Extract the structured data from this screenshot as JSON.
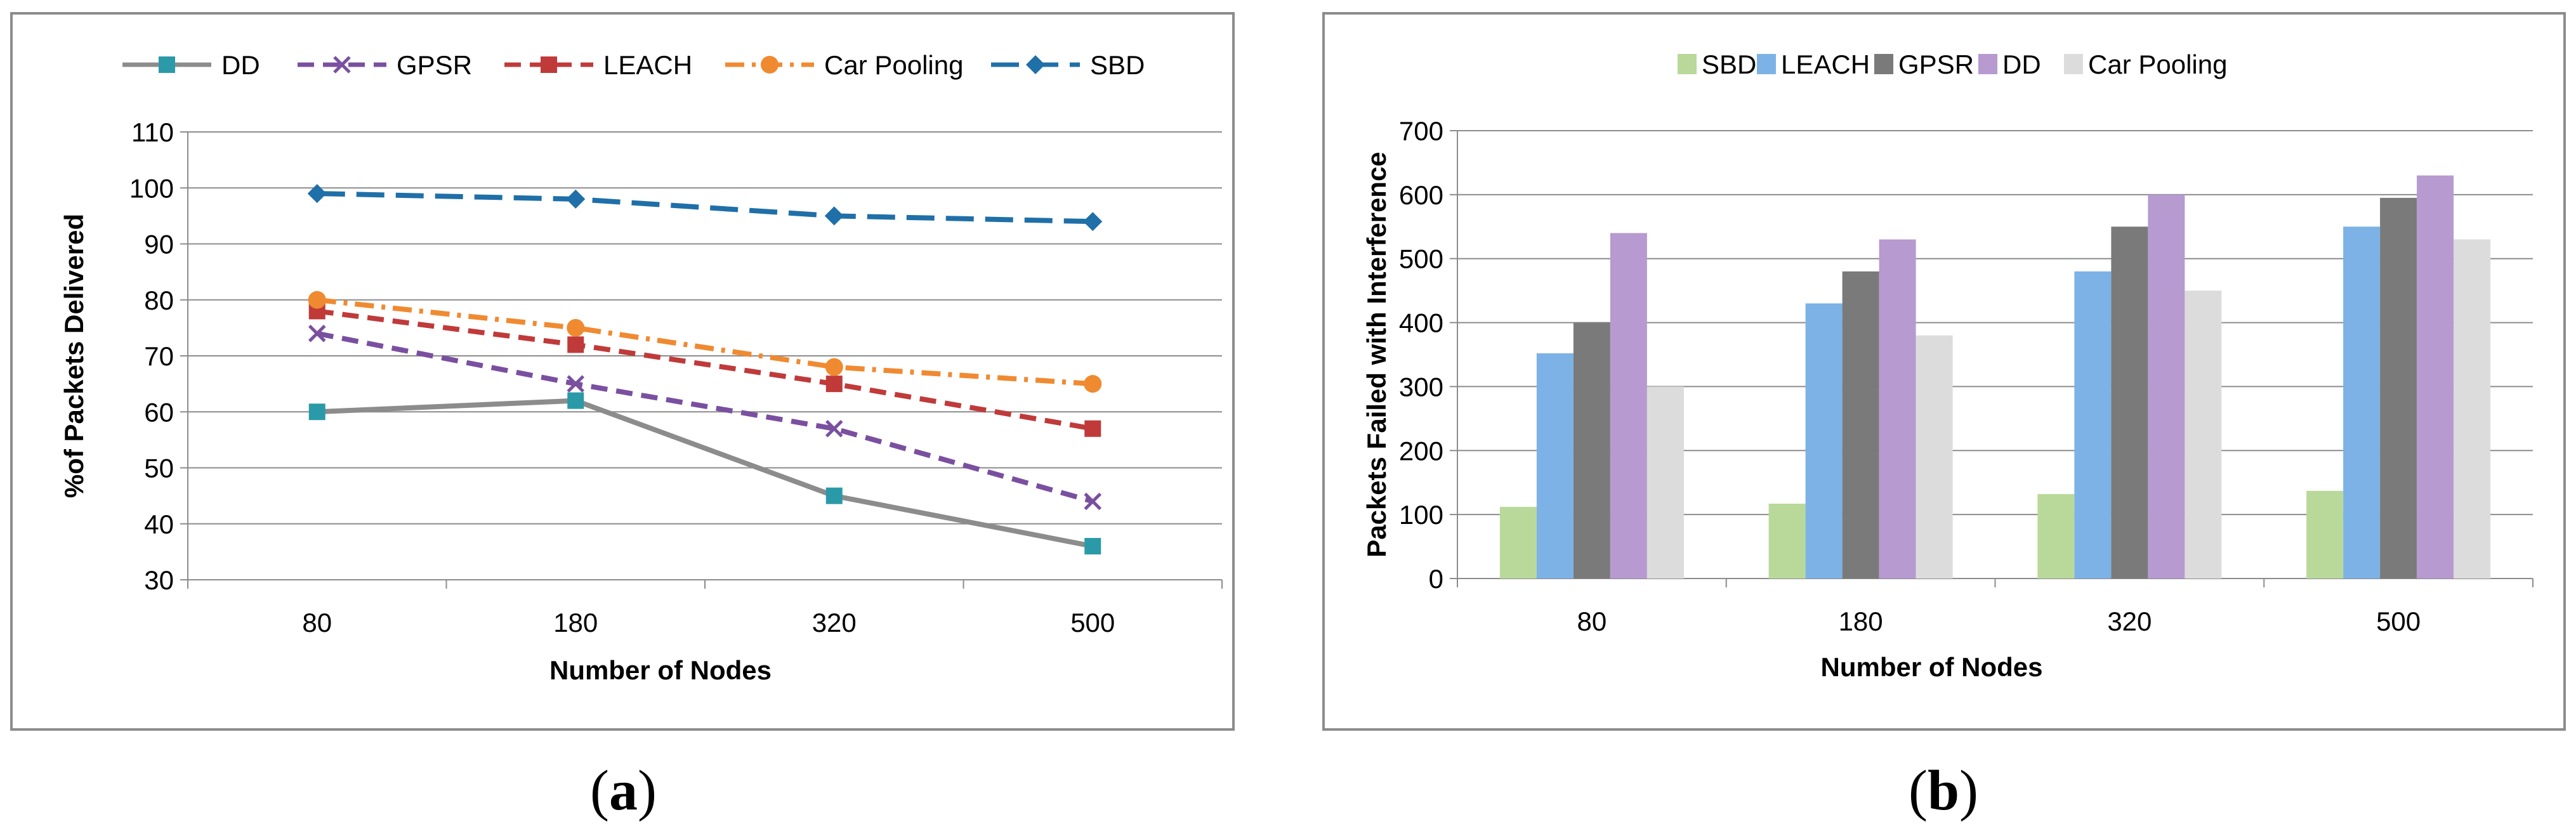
{
  "captions": {
    "a": {
      "open": "(",
      "letter": "a",
      "close": ")"
    },
    "b": {
      "open": "(",
      "letter": "b",
      "close": ")"
    }
  },
  "chart_data": [
    {
      "id": "a",
      "type": "line",
      "xlabel": "Number of Nodes",
      "ylabel": "%of Packets Delivered",
      "categories": [
        "80",
        "180",
        "320",
        "500"
      ],
      "ylim": [
        30,
        110
      ],
      "yticks": [
        30,
        40,
        50,
        60,
        70,
        80,
        90,
        100,
        110
      ],
      "grid": true,
      "legend_position": "top",
      "series": [
        {
          "name": "DD",
          "values": [
            60,
            62,
            45,
            36
          ],
          "color": "#8c8c8c",
          "dash": "solid",
          "marker": "square",
          "marker_color": "#2a9aa8"
        },
        {
          "name": "GPSR",
          "values": [
            74,
            65,
            57,
            44
          ],
          "color": "#7a4fa0",
          "dash": "dash",
          "marker": "x",
          "marker_color": "#7a4fa0"
        },
        {
          "name": "LEACH",
          "values": [
            78,
            72,
            65,
            57
          ],
          "color": "#c03a3a",
          "dash": "dash",
          "marker": "square",
          "marker_color": "#c03a3a"
        },
        {
          "name": "Car Pooling",
          "values": [
            80,
            75,
            68,
            65
          ],
          "color": "#f08a30",
          "dash": "dashdot",
          "marker": "circle",
          "marker_color": "#f08a30"
        },
        {
          "name": "SBD",
          "values": [
            99,
            98,
            95,
            94
          ],
          "color": "#1f6fa8",
          "dash": "longdash",
          "marker": "diamond",
          "marker_color": "#1f6fa8"
        }
      ]
    },
    {
      "id": "b",
      "type": "bar",
      "xlabel": "Number of Nodes",
      "ylabel": "Packets Failed with Interference",
      "categories": [
        "80",
        "180",
        "320",
        "500"
      ],
      "ylim": [
        0,
        700
      ],
      "yticks": [
        0,
        100,
        200,
        300,
        400,
        500,
        600,
        700
      ],
      "grid": true,
      "legend_position": "top",
      "series": [
        {
          "name": "SBD",
          "values": [
            112,
            117,
            132,
            137
          ],
          "color": "#b8d99a"
        },
        {
          "name": "LEACH",
          "values": [
            352,
            430,
            480,
            550
          ],
          "color": "#7cb2e6"
        },
        {
          "name": "GPSR",
          "values": [
            400,
            480,
            550,
            595
          ],
          "color": "#7a7a7a"
        },
        {
          "name": "DD",
          "values": [
            540,
            530,
            600,
            630
          ],
          "color": "#b69ad0"
        },
        {
          "name": "Car Pooling",
          "values": [
            300,
            380,
            450,
            530
          ],
          "color": "#dcdcdc"
        }
      ]
    }
  ]
}
